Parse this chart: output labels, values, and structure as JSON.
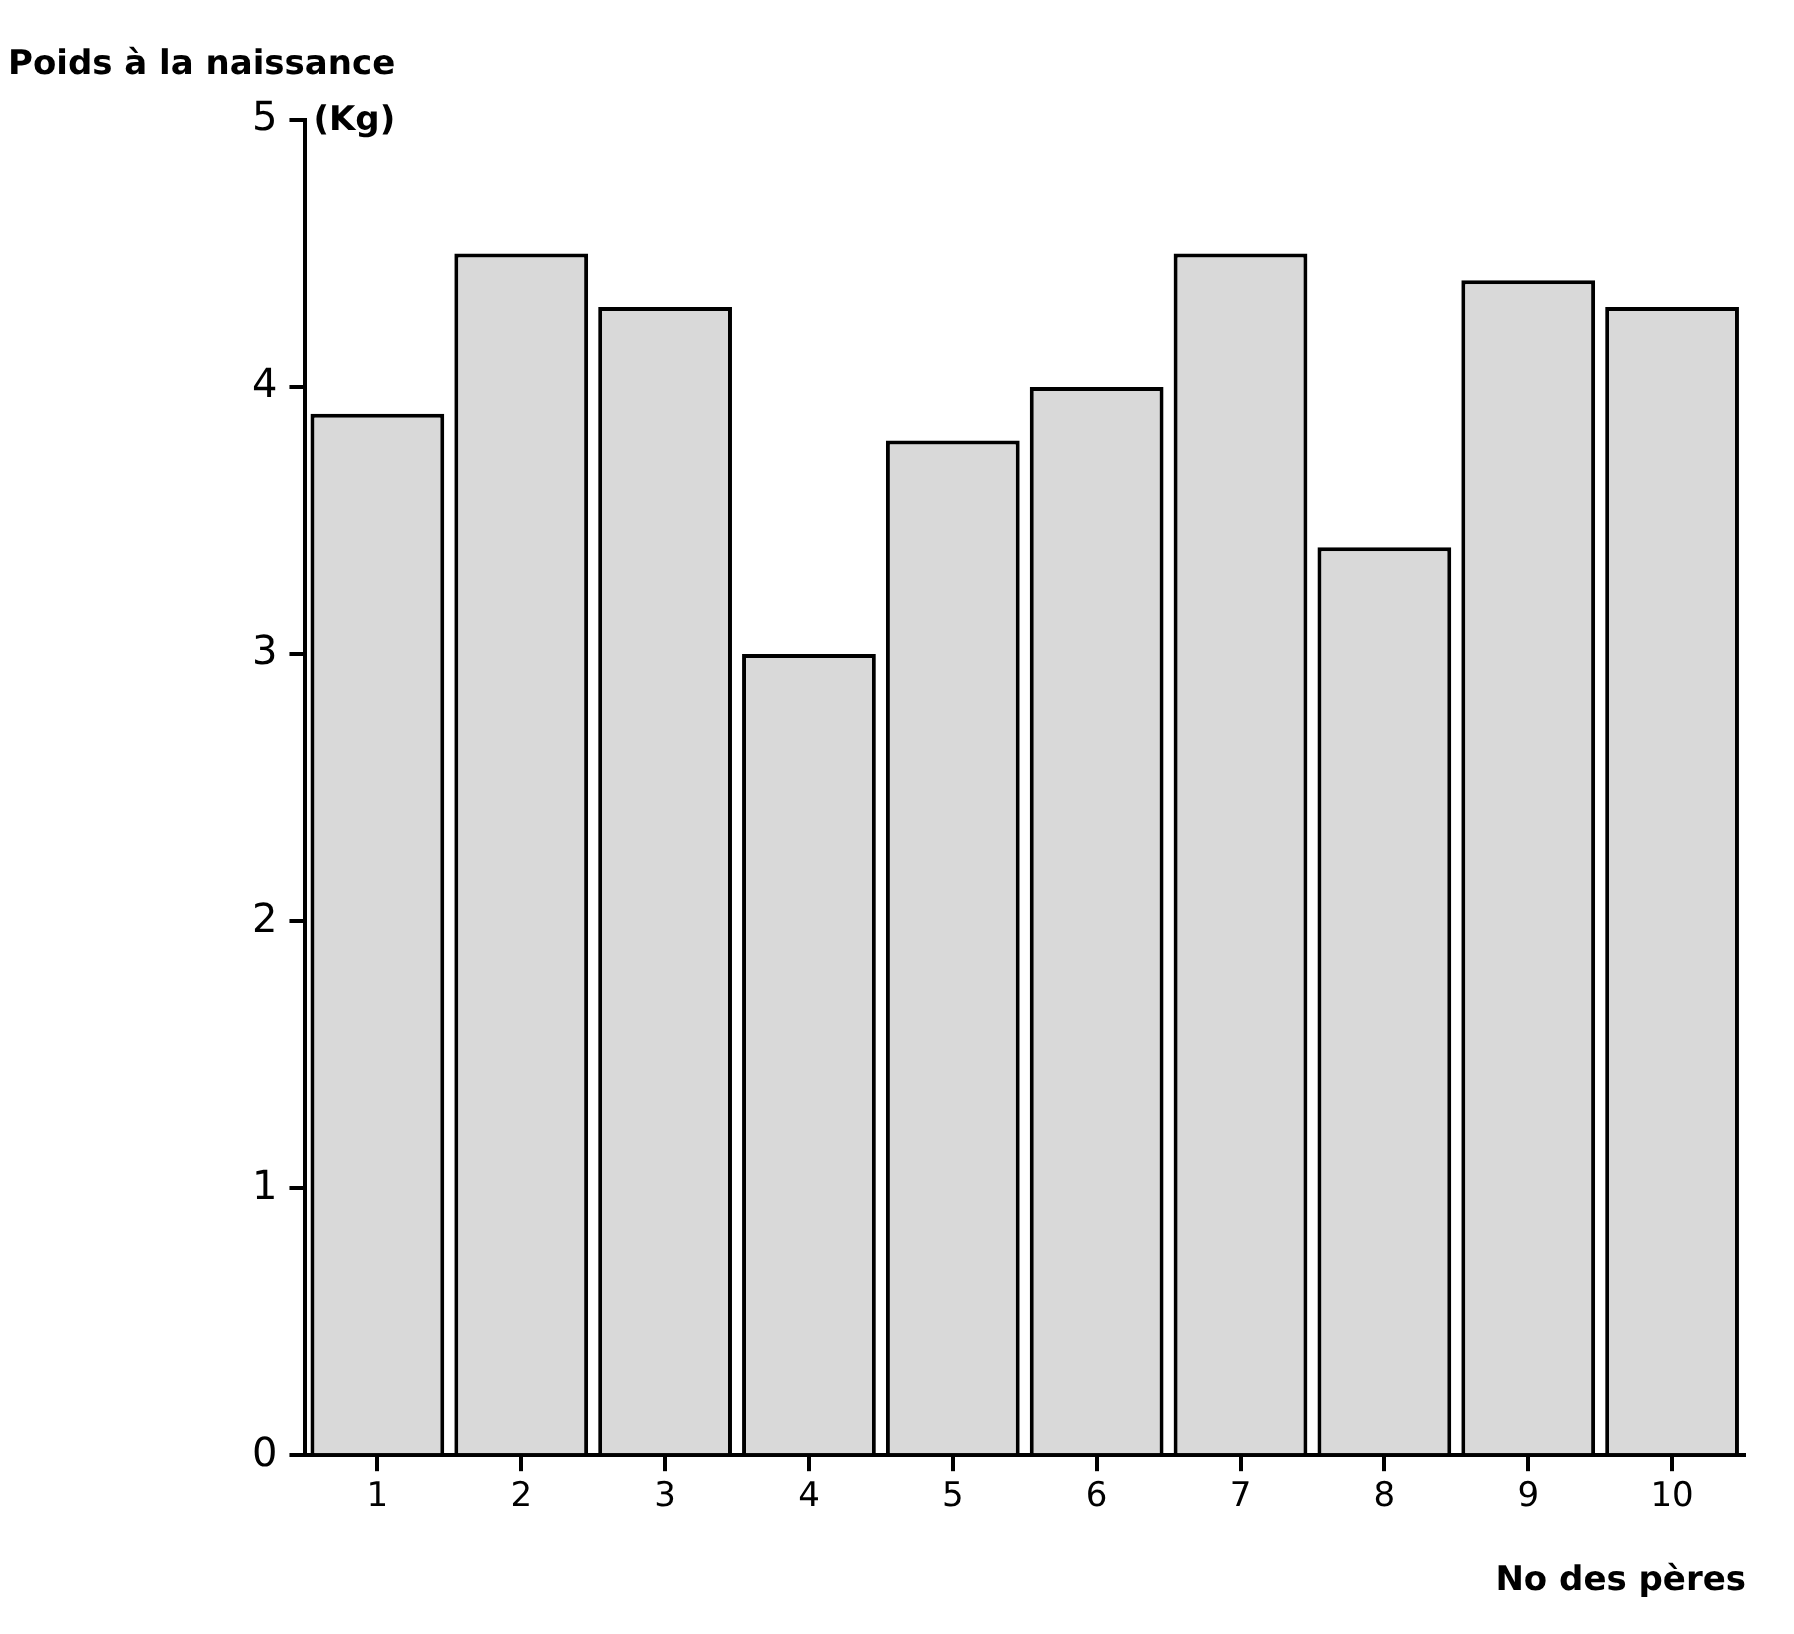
{
  "chart_data": {
    "type": "bar",
    "ylabel": "Poids à la naissance\n(Kg)",
    "xlabel": "No des pères",
    "categories": [
      "1",
      "2",
      "3",
      "4",
      "5",
      "6",
      "7",
      "8",
      "9",
      "10"
    ],
    "values": [
      3.9,
      4.5,
      4.3,
      3.0,
      3.8,
      4.0,
      4.5,
      3.4,
      4.4,
      4.3
    ],
    "color": "#d9d9d9",
    "ylim": [
      0,
      5
    ],
    "yticks": [
      0,
      1,
      2,
      3,
      4,
      5
    ],
    "grid": false,
    "legend": false
  }
}
